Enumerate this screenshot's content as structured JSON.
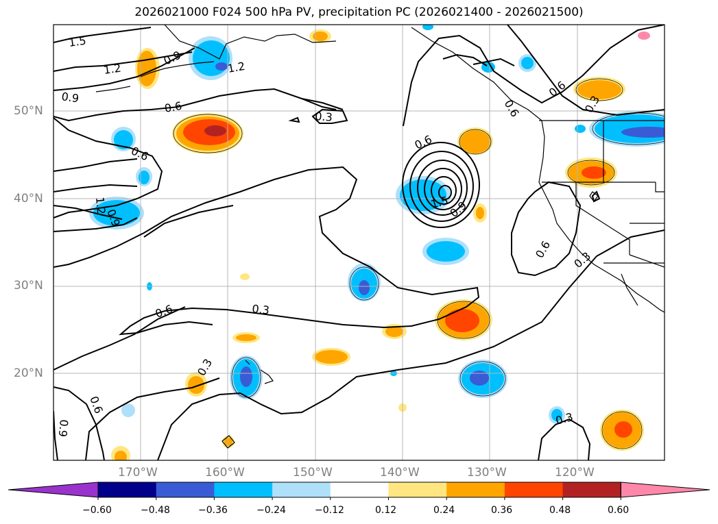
{
  "title": "2026021000 F024 500 hPa PV, precipitation PC (2026021400 - 2026021500)",
  "axes": {
    "lat_labels": [
      "50°N",
      "40°N",
      "30°N",
      "20°N"
    ],
    "lon_labels": [
      "170°W",
      "160°W",
      "150°W",
      "140°W",
      "130°W",
      "120°W"
    ],
    "lat_values": [
      50,
      40,
      30,
      20
    ],
    "lon_values": [
      -170,
      -160,
      -150,
      -140,
      -130,
      -120
    ],
    "lon_range": [
      -180,
      -110
    ],
    "lat_range": [
      10,
      60
    ],
    "grid": true
  },
  "contour_labels": [
    "1.5",
    "1.2",
    "0.9",
    "0.9",
    "1.2",
    "0.6",
    "0.3",
    "0.6",
    "0.6",
    "0.6",
    "1.2",
    "0.9",
    "0.6",
    "0.3",
    "0.6",
    "0.3",
    "0.3",
    "0.6",
    "0.3",
    "0.9",
    "0.6",
    "0.3",
    "1.5",
    "0.9"
  ],
  "colorbar": {
    "ticks": [
      "−0.60",
      "−0.48",
      "−0.36",
      "−0.24",
      "−0.12",
      "0.12",
      "0.24",
      "0.36",
      "0.48",
      "0.60"
    ],
    "colors": [
      "#9933cc",
      "#00008b",
      "#3a5bd6",
      "#00bfff",
      "#aee0fa",
      "#ffffff",
      "#ffe680",
      "#ffa500",
      "#ff4500",
      "#b22222",
      "#ff88aa"
    ],
    "extend": "both"
  }
}
